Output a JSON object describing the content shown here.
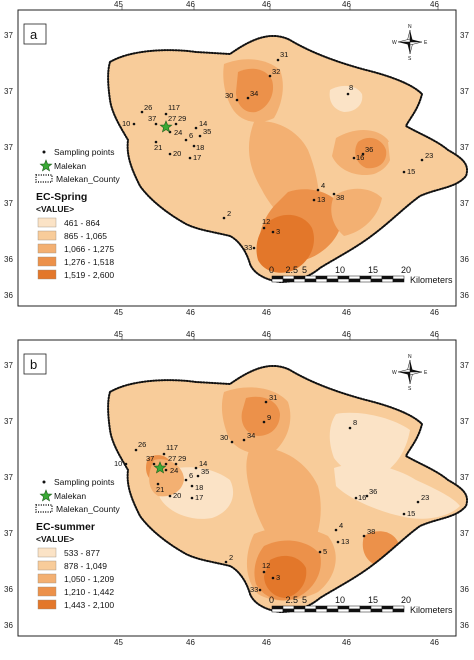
{
  "panels": [
    {
      "letter": "a",
      "lon_labels": [
        "45",
        "46",
        "46",
        "46",
        "46"
      ],
      "lat_labels": [
        "37",
        "37",
        "37",
        "37",
        "36",
        "36"
      ],
      "legend": {
        "sampling": "Sampling points",
        "town": "Malekan",
        "county": "Malekan_County",
        "title": "EC-Spring",
        "value_header": "<VALUE>",
        "classes": [
          {
            "label": "461 - 864",
            "color": "#fbe3c6"
          },
          {
            "label": "865 - 1,065",
            "color": "#f8cc9a"
          },
          {
            "label": "1,066 - 1,275",
            "color": "#f3b072"
          },
          {
            "label": "1,276 - 1,518",
            "color": "#ec914a"
          },
          {
            "label": "1,519 - 2,600",
            "color": "#e3772a"
          }
        ]
      },
      "scale": {
        "ticks": [
          "0",
          "2.5",
          "5",
          "10",
          "15",
          "20"
        ],
        "unit": "Kilometers"
      },
      "points": [
        "31",
        "32",
        "8",
        "30",
        "34",
        "26",
        "10",
        "117",
        "37",
        "27",
        "29",
        "24",
        "14",
        "21",
        "6",
        "35",
        "18",
        "20",
        "17",
        "16",
        "36",
        "23",
        "15",
        "4",
        "13",
        "38",
        "2",
        "12",
        "3",
        "33"
      ]
    },
    {
      "letter": "b",
      "lon_labels": [
        "45",
        "46",
        "46",
        "46",
        "46"
      ],
      "lat_labels": [
        "37",
        "37",
        "37",
        "37",
        "36",
        "36"
      ],
      "legend": {
        "sampling": "Sampling points",
        "town": "Malekan",
        "county": "Malekan_County",
        "title": "EC-summer",
        "value_header": "<VALUE>",
        "classes": [
          {
            "label": "533 - 877",
            "color": "#fbe3c6"
          },
          {
            "label": "878 - 1,049",
            "color": "#f8cc9a"
          },
          {
            "label": "1,050 - 1,209",
            "color": "#f3b072"
          },
          {
            "label": "1,210 - 1,442",
            "color": "#ec914a"
          },
          {
            "label": "1,443 - 2,100",
            "color": "#e3772a"
          }
        ]
      },
      "scale": {
        "ticks": [
          "0",
          "2.5",
          "5",
          "10",
          "15",
          "20"
        ],
        "unit": "Kilometers"
      },
      "points": [
        "31",
        "9",
        "8",
        "30",
        "34",
        "26",
        "10",
        "117",
        "37",
        "27",
        "29",
        "24",
        "21",
        "14",
        "35",
        "6",
        "18",
        "20",
        "17",
        "16",
        "36",
        "23",
        "15",
        "4",
        "13",
        "5",
        "38",
        "2",
        "12",
        "3",
        "33"
      ]
    }
  ]
}
